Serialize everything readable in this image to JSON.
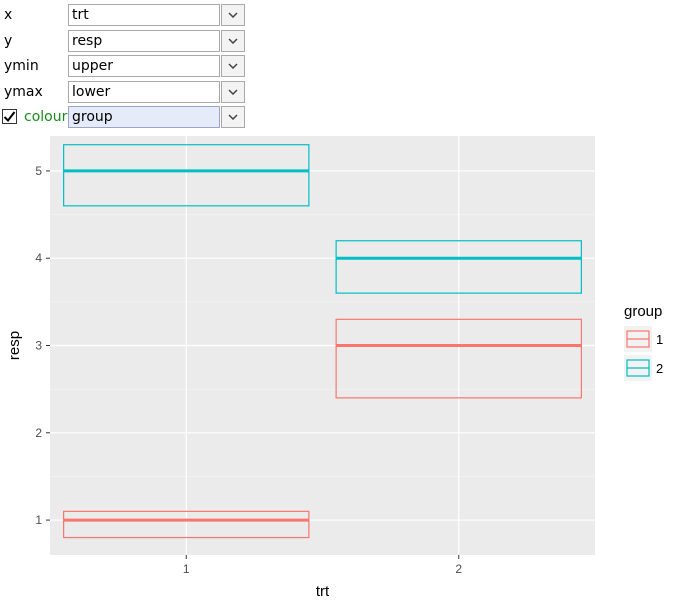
{
  "controls": {
    "x": {
      "label": "x",
      "value": "trt"
    },
    "y": {
      "label": "y",
      "value": "resp"
    },
    "ymin": {
      "label": "ymin",
      "value": "upper"
    },
    "ymax": {
      "label": "ymax",
      "value": "lower"
    },
    "colour": {
      "label": "colour",
      "value": "group",
      "checked": true
    }
  },
  "icons": {
    "dropdown": "chevron-down-icon",
    "checkbox": "checkmark-icon"
  },
  "chart_data": {
    "type": "crossbar",
    "xlabel": "trt",
    "ylabel": "resp",
    "categories": [
      "1",
      "2"
    ],
    "y_ticks": [
      1,
      2,
      3,
      4,
      5
    ],
    "ylim": [
      0.6,
      5.4
    ],
    "grid": true,
    "legend_title": "group",
    "legend_position": "right",
    "series": [
      {
        "name": "1",
        "color": "#F8766D",
        "points": [
          {
            "x": "1",
            "y": 1,
            "lower": 0.8,
            "upper": 1.1
          },
          {
            "x": "2",
            "y": 3,
            "lower": 2.4,
            "upper": 3.3
          }
        ]
      },
      {
        "name": "2",
        "color": "#00BFC4",
        "points": [
          {
            "x": "1",
            "y": 5,
            "lower": 4.6,
            "upper": 5.3
          },
          {
            "x": "2",
            "y": 4,
            "lower": 3.6,
            "upper": 4.2
          }
        ]
      }
    ]
  }
}
